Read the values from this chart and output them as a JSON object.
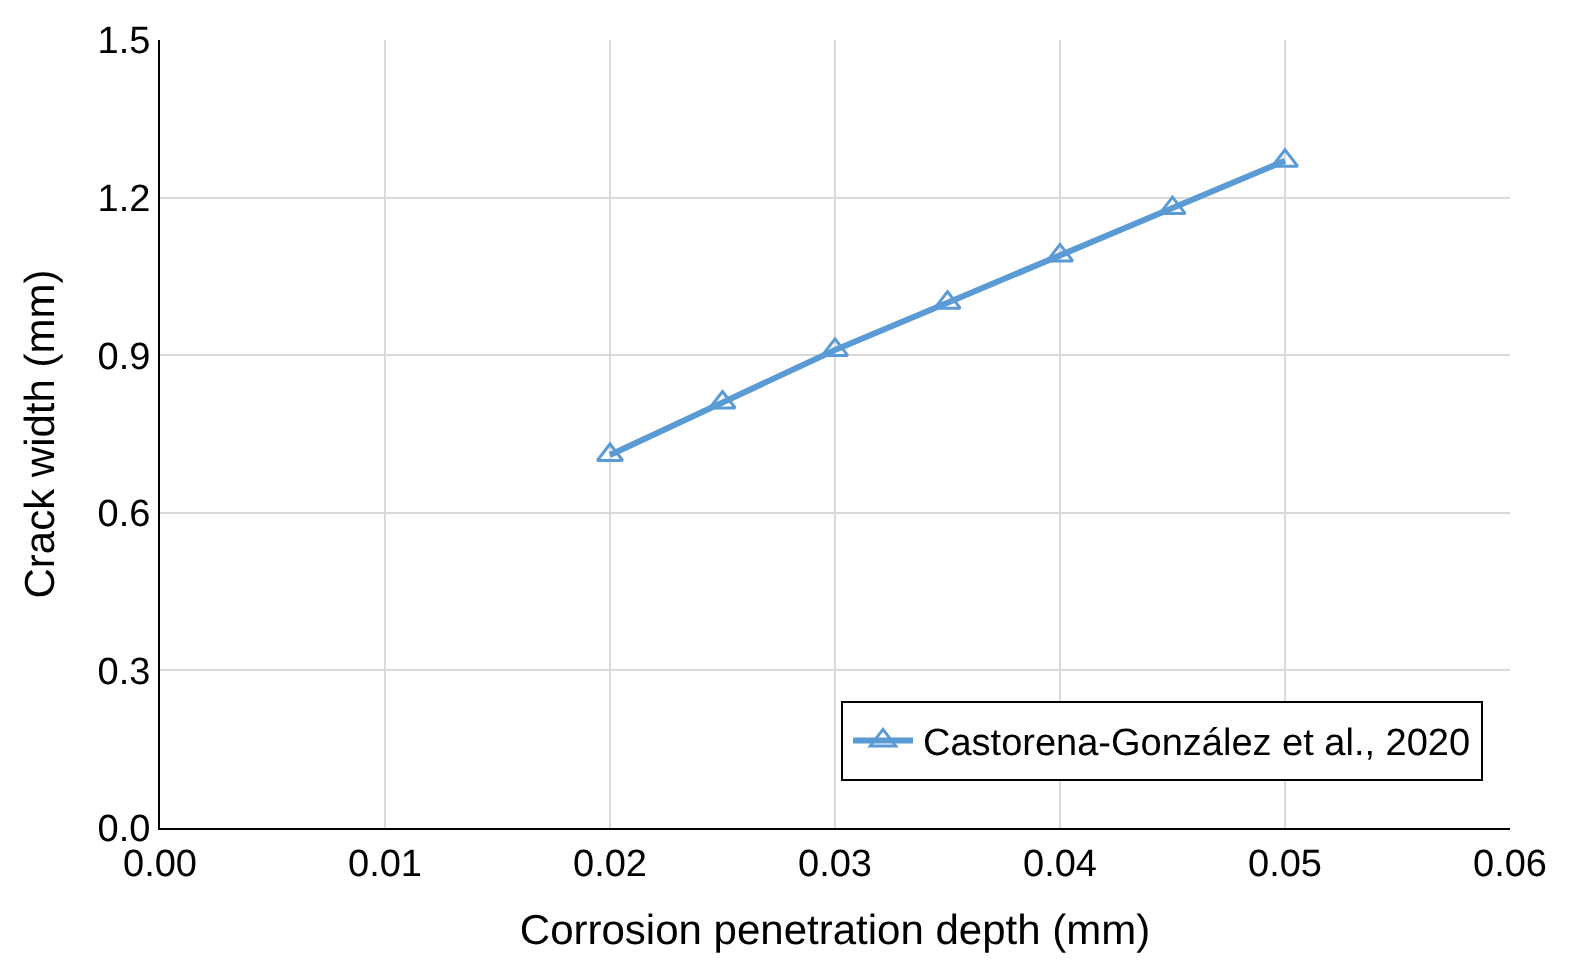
{
  "chart_data": {
    "type": "line",
    "xlabel": "Corrosion penetration depth (mm)",
    "ylabel": "Crack width (mm)",
    "x": [
      0.02,
      0.025,
      0.03,
      0.035,
      0.04,
      0.045,
      0.05
    ],
    "series": [
      {
        "name": "Castorena-González et al., 2020",
        "color": "#5b9bd5",
        "values": [
          0.71,
          0.81,
          0.91,
          1.0,
          1.09,
          1.18,
          1.27
        ]
      }
    ],
    "xlim": [
      0,
      0.06
    ],
    "xticks": [
      {
        "value": 0,
        "label": "0.00"
      },
      {
        "value": 0.01,
        "label": "0.01"
      },
      {
        "value": 0.02,
        "label": "0.02"
      },
      {
        "value": 0.03,
        "label": "0.03"
      },
      {
        "value": 0.04,
        "label": "0.04"
      },
      {
        "value": 0.05,
        "label": "0.05"
      },
      {
        "value": 0.06,
        "label": "0.06"
      }
    ],
    "ylim": [
      0,
      1.5
    ],
    "yticks": [
      {
        "value": 0,
        "label": "0.0"
      },
      {
        "value": 0.3,
        "label": "0.3"
      },
      {
        "value": 0.6,
        "label": "0.6"
      },
      {
        "value": 0.9,
        "label": "0.9"
      },
      {
        "value": 1.2,
        "label": "1.2"
      },
      1.5
    ],
    "grid": true,
    "legend": "bottom right",
    "marker": "triangle",
    "line_style": "solid"
  }
}
